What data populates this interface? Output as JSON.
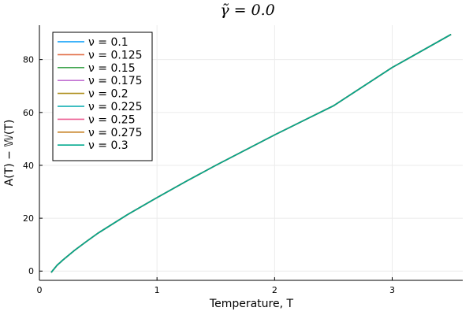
{
  "chart_data": {
    "type": "line",
    "title": "γ̃ = 0.0",
    "xlabel": "Temperature, T",
    "ylabel": "A(T) − 𝕎(T)",
    "xlim": [
      0,
      3.6
    ],
    "ylim": [
      -3.5,
      93
    ],
    "xticks": [
      0,
      1,
      2,
      3
    ],
    "yticks": [
      0,
      20,
      40,
      60,
      80
    ],
    "grid": true,
    "legend_position": "top-left",
    "x": [
      0.1,
      0.15,
      0.2,
      0.3,
      0.4,
      0.5,
      0.75,
      1.0,
      1.25,
      1.5,
      2.0,
      2.5,
      3.0,
      3.5
    ],
    "series": [
      {
        "name": "ν = 0.1",
        "color": "#009af9",
        "values": [
          -0.5,
          2.2,
          4.2,
          7.9,
          11.2,
          14.4,
          21.4,
          27.8,
          34.0,
          40.0,
          51.5,
          62.5,
          77.0,
          89.5
        ]
      },
      {
        "name": "ν = 0.125",
        "color": "#e26f46",
        "values": [
          -0.5,
          2.2,
          4.2,
          7.9,
          11.2,
          14.4,
          21.4,
          27.8,
          34.0,
          40.0,
          51.5,
          62.5,
          77.0,
          89.5
        ]
      },
      {
        "name": "ν = 0.15",
        "color": "#3da44d",
        "values": [
          -0.5,
          2.2,
          4.2,
          7.9,
          11.2,
          14.4,
          21.4,
          27.8,
          34.0,
          40.0,
          51.5,
          62.5,
          77.0,
          89.5
        ]
      },
      {
        "name": "ν = 0.175",
        "color": "#c271d2",
        "values": [
          -0.5,
          2.2,
          4.2,
          7.9,
          11.2,
          14.4,
          21.4,
          27.8,
          34.0,
          40.0,
          51.5,
          62.5,
          77.0,
          89.5
        ]
      },
      {
        "name": "ν = 0.2",
        "color": "#ac8d18",
        "values": [
          -0.5,
          2.2,
          4.2,
          7.9,
          11.2,
          14.4,
          21.4,
          27.8,
          34.0,
          40.0,
          51.5,
          62.5,
          77.0,
          89.5
        ]
      },
      {
        "name": "ν = 0.225",
        "color": "#00a9ad",
        "values": [
          -0.5,
          2.2,
          4.2,
          7.9,
          11.2,
          14.4,
          21.4,
          27.8,
          34.0,
          40.0,
          51.5,
          62.5,
          77.0,
          89.5
        ]
      },
      {
        "name": "ν = 0.25",
        "color": "#ed5d92",
        "values": [
          -0.5,
          2.2,
          4.2,
          7.9,
          11.2,
          14.4,
          21.4,
          27.8,
          34.0,
          40.0,
          51.5,
          62.5,
          77.0,
          89.5
        ]
      },
      {
        "name": "ν = 0.275",
        "color": "#c68225",
        "values": [
          -0.5,
          2.2,
          4.2,
          7.9,
          11.2,
          14.4,
          21.4,
          27.8,
          34.0,
          40.0,
          51.5,
          62.5,
          77.0,
          89.5
        ]
      },
      {
        "name": "ν = 0.3",
        "color": "#00a98d",
        "values": [
          -0.5,
          2.2,
          4.2,
          7.9,
          11.2,
          14.4,
          21.4,
          27.8,
          34.0,
          40.0,
          51.5,
          62.5,
          77.0,
          89.5
        ]
      }
    ]
  }
}
